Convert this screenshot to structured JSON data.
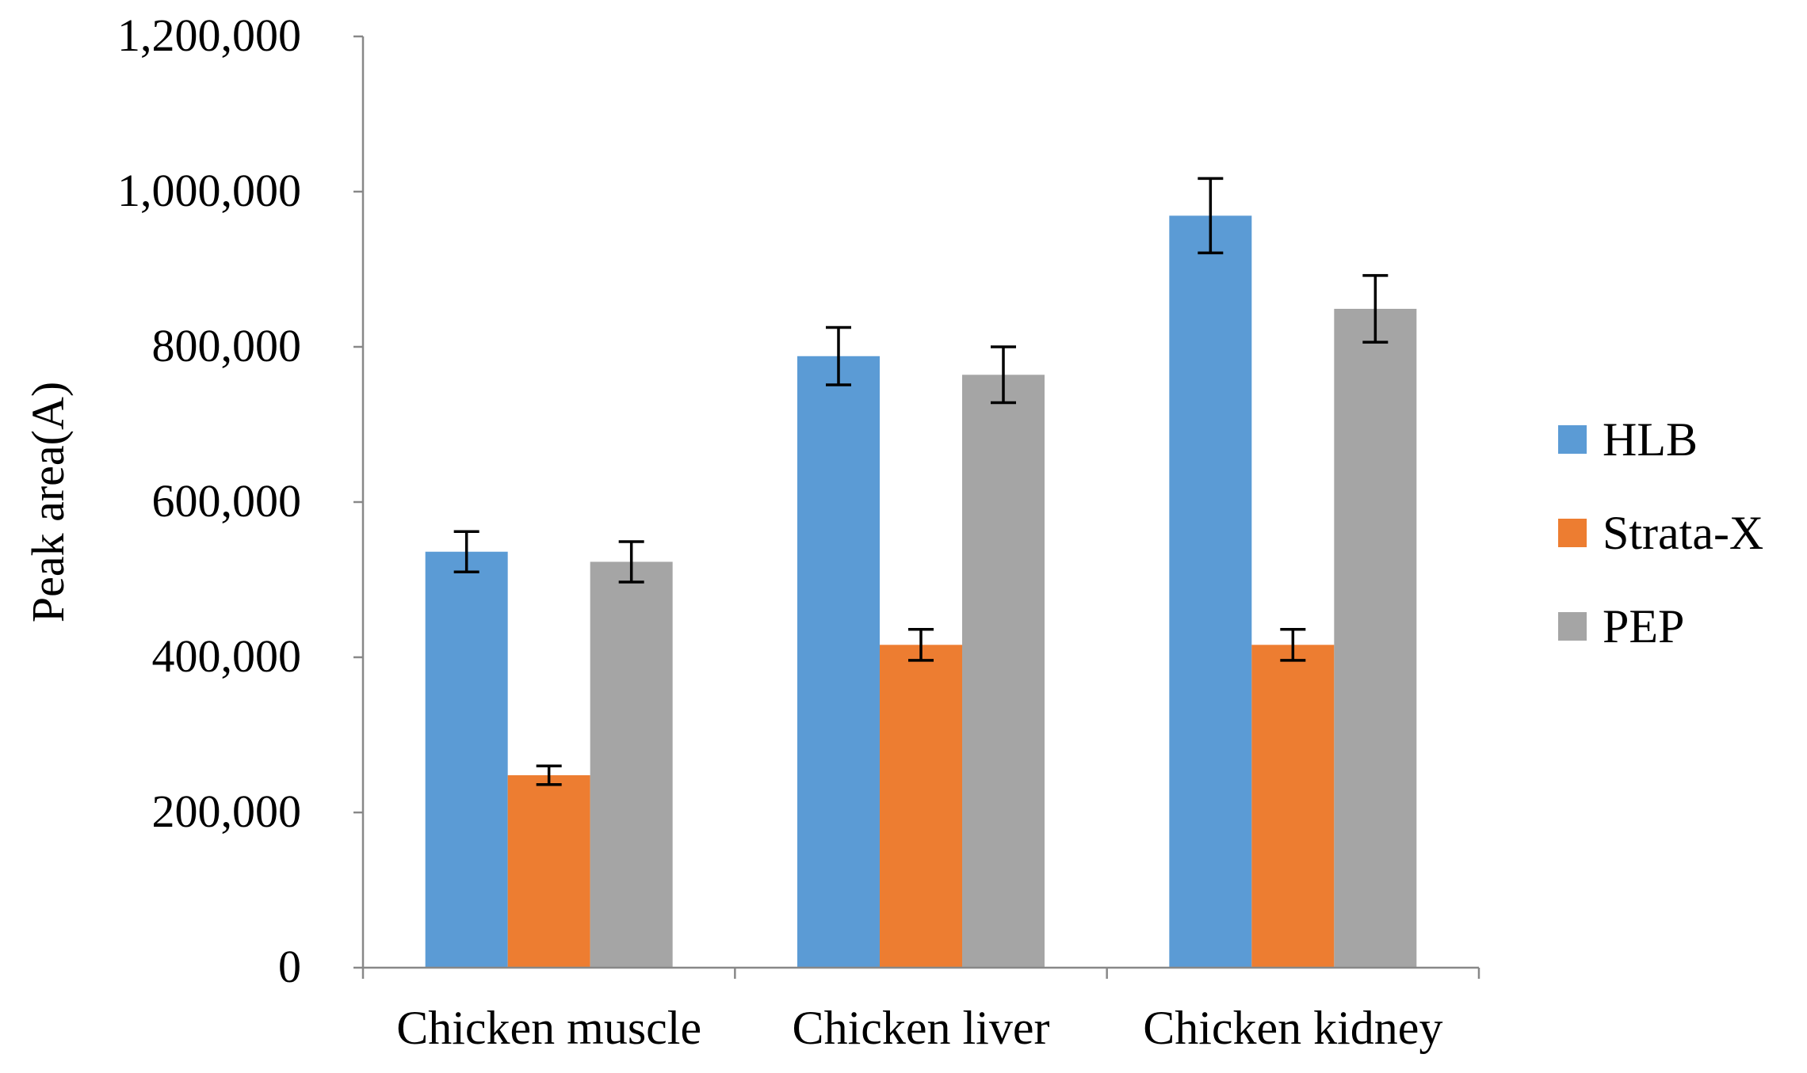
{
  "chart_data": {
    "type": "bar",
    "title": "",
    "xlabel": "",
    "ylabel": "Peak area(A)",
    "ylim": [
      0,
      1200000
    ],
    "ytick_values": [
      0,
      200000,
      400000,
      600000,
      800000,
      1000000,
      1200000
    ],
    "ytick_labels": [
      "0",
      "200,000",
      "400,000",
      "600,000",
      "800,000",
      "1,000,000",
      "1,200,000"
    ],
    "categories": [
      "Chicken muscle",
      "Chicken liver",
      "Chicken kidney"
    ],
    "grid": false,
    "legend_position": "right",
    "series": [
      {
        "name": "HLB",
        "color": "#5b9bd5",
        "values": [
          536000,
          788000,
          969000
        ],
        "errors": [
          26000,
          37000,
          48000
        ]
      },
      {
        "name": "Strata-X",
        "color": "#ed7d31",
        "values": [
          248000,
          416000,
          416000
        ],
        "errors": [
          12000,
          20000,
          20000
        ]
      },
      {
        "name": "PEP",
        "color": "#a5a5a5",
        "values": [
          523000,
          764000,
          849000
        ],
        "errors": [
          26000,
          36000,
          43000
        ]
      }
    ]
  }
}
